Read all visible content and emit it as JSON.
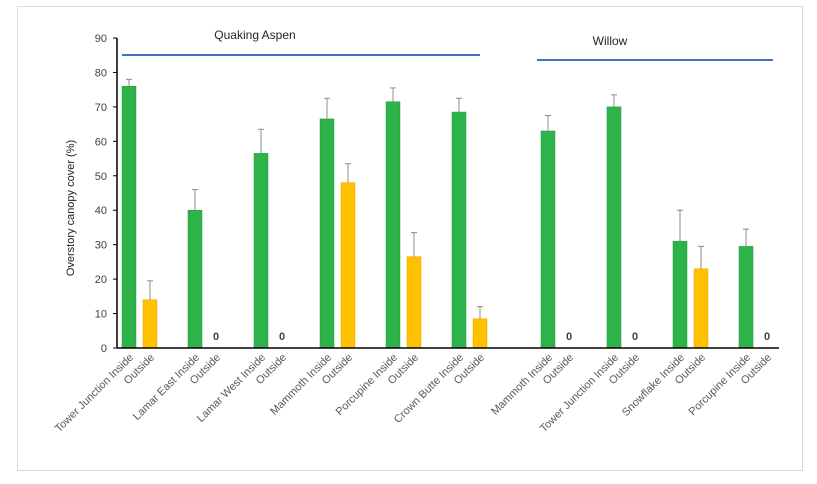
{
  "chart_data": {
    "type": "bar",
    "ylabel": "Overstory canopy cover (%)",
    "ylim": [
      0,
      90
    ],
    "yticks": [
      0,
      10,
      20,
      30,
      40,
      50,
      60,
      70,
      80,
      90
    ],
    "grid": false,
    "groups": [
      {
        "label": "Quaking Aspen",
        "first_index": 0,
        "last_index": 11
      },
      {
        "label": "Willow",
        "first_index": 12,
        "last_index": 19
      }
    ],
    "categories": [
      "Tower Junction Inside",
      "Outside",
      "Lamar East Inside",
      "Outside",
      "Lamar West Inside",
      "Outside",
      "Mammoth Inside",
      "Outside",
      "Porcupine Inside",
      "Outside",
      "Crown Butte Inside",
      "Outside",
      "Mammoth Inside",
      "Outside",
      "Tower Junction Inside",
      "Outside",
      "Snowflake Inside",
      "Outside",
      "Porcupine Inside",
      "Outside"
    ],
    "values": [
      76,
      14,
      40,
      0,
      56.5,
      0,
      66.5,
      48,
      71.5,
      26.5,
      68.5,
      8.5,
      63,
      0,
      70,
      0,
      31,
      23,
      29.5,
      0
    ],
    "errors": [
      2,
      5.5,
      6,
      0,
      7,
      0,
      6,
      5.5,
      4,
      7,
      4,
      3.5,
      4.5,
      0,
      3.5,
      0,
      9,
      6.5,
      5,
      0
    ],
    "types": [
      "inside",
      "outside",
      "inside",
      "outside",
      "inside",
      "outside",
      "inside",
      "outside",
      "inside",
      "outside",
      "inside",
      "outside",
      "inside",
      "outside",
      "inside",
      "outside",
      "inside",
      "outside",
      "inside",
      "outside"
    ],
    "zero_label": "0",
    "colors": {
      "inside": "#2db34a",
      "outside": "#ffc000",
      "group_line": "#4472c4",
      "axis": "#000000",
      "error_bar": "#8c8c8c"
    }
  }
}
